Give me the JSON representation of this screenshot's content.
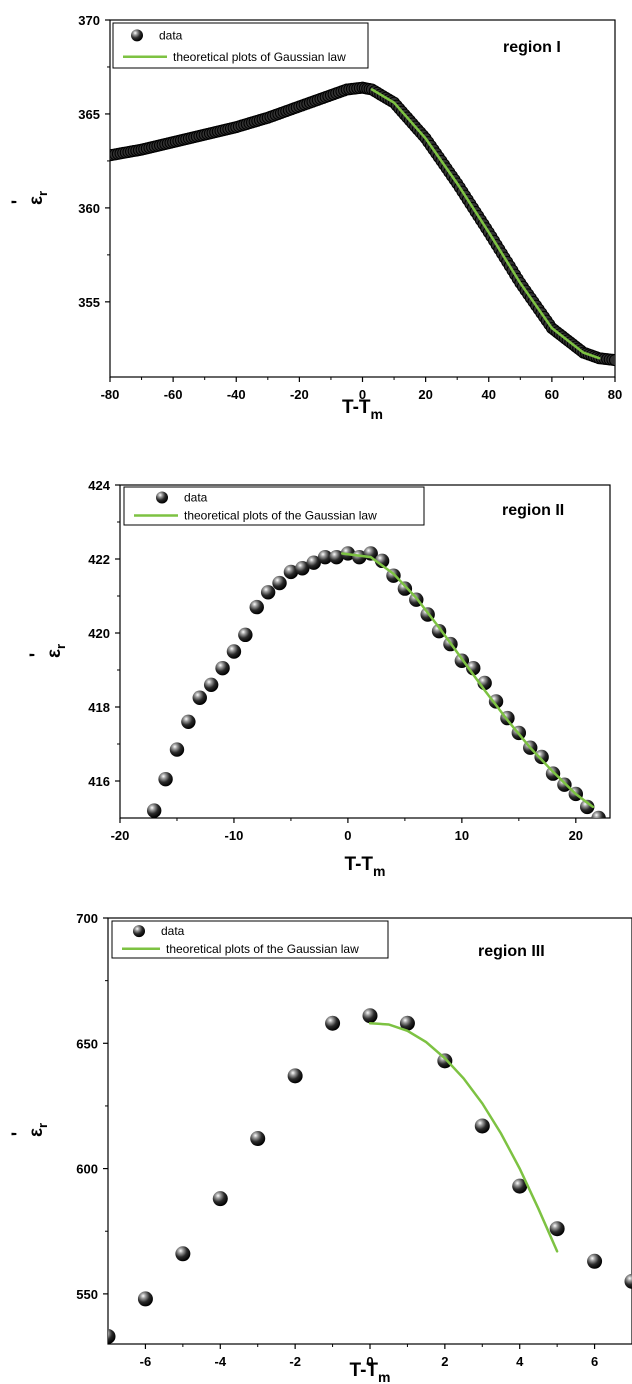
{
  "chart_data": [
    {
      "type": "scatter",
      "panel_label": "region I",
      "xlabel": "T-T",
      "xlabel_sub": "m",
      "ylabel": "ε",
      "ylabel_sub": "r",
      "ylabel_prime": "'",
      "xlim": [
        -80,
        80
      ],
      "ylim": [
        351,
        370
      ],
      "xticks": [
        -80,
        -60,
        -40,
        -20,
        0,
        20,
        40,
        60,
        80
      ],
      "yticks": [
        355,
        360,
        365,
        370
      ],
      "legend_position": "top-left",
      "series": [
        {
          "name": "data",
          "kind": "points",
          "color": "#1a1a1a",
          "dense": true,
          "x": [
            -80,
            -70,
            -60,
            -50,
            -40,
            -30,
            -20,
            -10,
            -5,
            0,
            3,
            10,
            20,
            30,
            40,
            50,
            60,
            70,
            75,
            80
          ],
          "y": [
            362.8,
            363.1,
            363.5,
            363.9,
            364.3,
            364.8,
            365.4,
            366.0,
            366.3,
            366.4,
            366.3,
            365.6,
            363.7,
            361.3,
            358.7,
            356.0,
            353.6,
            352.3,
            352.0,
            351.9
          ]
        },
        {
          "name": "theoretical plots of Gaussian law",
          "kind": "line",
          "color": "#7dc242",
          "x": [
            3,
            10,
            20,
            30,
            40,
            50,
            60,
            70,
            75
          ],
          "y": [
            366.3,
            365.6,
            363.7,
            361.3,
            358.7,
            356.0,
            353.6,
            352.3,
            352.0
          ]
        }
      ]
    },
    {
      "type": "scatter",
      "panel_label": "region II",
      "xlabel": "T-T",
      "xlabel_sub": "m",
      "ylabel": "ε",
      "ylabel_sub": "r",
      "ylabel_prime": "'",
      "xlim": [
        -20,
        23
      ],
      "ylim": [
        415,
        424
      ],
      "xticks": [
        -20,
        -10,
        0,
        10,
        20
      ],
      "yticks": [
        416,
        418,
        420,
        422,
        424
      ],
      "legend_position": "top-left",
      "series": [
        {
          "name": "data",
          "kind": "points",
          "color": "#1a1a1a",
          "x": [
            -17,
            -16,
            -15,
            -14,
            -13,
            -12,
            -11,
            -10,
            -9,
            -8,
            -7,
            -6,
            -5,
            -4,
            -3,
            -2,
            -1,
            0,
            1,
            2,
            3,
            4,
            5,
            6,
            7,
            8,
            9,
            10,
            11,
            12,
            13,
            14,
            15,
            16,
            17,
            18,
            19,
            20,
            21,
            22
          ],
          "y": [
            415.2,
            416.05,
            416.85,
            417.6,
            418.25,
            418.6,
            419.05,
            419.5,
            419.95,
            420.7,
            421.1,
            421.35,
            421.65,
            421.75,
            421.9,
            422.05,
            422.05,
            422.15,
            422.05,
            422.15,
            421.95,
            421.55,
            421.2,
            420.9,
            420.5,
            420.05,
            419.7,
            419.25,
            419.05,
            418.65,
            418.15,
            417.7,
            417.3,
            416.9,
            416.65,
            416.2,
            415.9,
            415.65,
            415.3,
            415.0
          ]
        },
        {
          "name": "theoretical plots of the Gaussian law",
          "kind": "line",
          "color": "#7dc242",
          "x": [
            -0.5,
            2,
            4,
            6,
            8,
            10,
            12,
            14,
            16,
            18,
            20,
            21.5
          ],
          "y": [
            422.15,
            422.05,
            421.6,
            420.95,
            420.15,
            419.3,
            418.45,
            417.65,
            416.9,
            416.25,
            415.65,
            415.3
          ]
        }
      ]
    },
    {
      "type": "scatter",
      "panel_label": "region III",
      "xlabel": "T-T",
      "xlabel_sub": "m",
      "ylabel": "ε",
      "ylabel_sub": "r",
      "ylabel_prime": "'",
      "xlim": [
        -7,
        7
      ],
      "ylim": [
        530,
        700
      ],
      "xticks": [
        -6,
        -4,
        -2,
        0,
        2,
        4,
        6
      ],
      "yticks": [
        550,
        600,
        650,
        700
      ],
      "legend_position": "top-left",
      "series": [
        {
          "name": "data",
          "kind": "points",
          "color": "#1a1a1a",
          "x": [
            -7,
            -6,
            -5,
            -4,
            -3,
            -2,
            -1,
            0,
            1,
            2,
            3,
            4,
            5,
            6,
            7
          ],
          "y": [
            533,
            548,
            566,
            588,
            612,
            637,
            658,
            661,
            658,
            643,
            617,
            593,
            576,
            563,
            555
          ]
        },
        {
          "name": "theoretical plots of the Gaussian law",
          "kind": "line",
          "color": "#7dc242",
          "x": [
            0,
            0.5,
            1,
            1.5,
            2,
            2.5,
            3,
            3.5,
            4,
            4.5,
            5
          ],
          "y": [
            658,
            657.5,
            655,
            650.5,
            644,
            636,
            626,
            614,
            600,
            584,
            567
          ]
        }
      ]
    }
  ]
}
